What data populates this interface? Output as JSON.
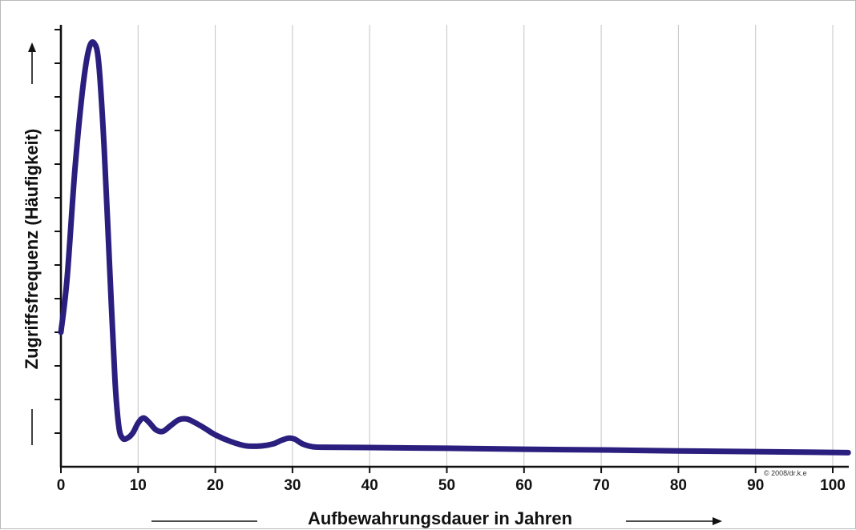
{
  "chart_data": {
    "type": "line",
    "title": "",
    "xlabel": "Aufbewahrungsdauer in Jahren",
    "ylabel": "Zugriffsfrequenz (Häufigkeit)",
    "xlim": [
      0,
      102
    ],
    "ylim": [
      0,
      13
    ],
    "x_ticks": [
      0,
      10,
      20,
      30,
      40,
      50,
      60,
      70,
      80,
      90,
      100
    ],
    "x_tick_labels": [
      "0",
      "10",
      "20",
      "30",
      "40",
      "50",
      "60",
      "70",
      "80",
      "90",
      "100"
    ],
    "y_tick_count": 13,
    "grid": "vertical",
    "legend": "none",
    "credit": "© 2008/dr.k.e",
    "series": [
      {
        "color": "#2a1f7e",
        "x": [
          0,
          0.8,
          1.8,
          2.8,
          3.6,
          4.3,
          4.9,
          5.6,
          6.3,
          7.0,
          7.5,
          8.0,
          8.6,
          9.3,
          10.0,
          10.7,
          11.5,
          12.3,
          13.2,
          14.2,
          15.3,
          16.3,
          17.3,
          18.6,
          20.0,
          22.0,
          24.0,
          26.0,
          27.5,
          28.5,
          29.5,
          30.3,
          31.3,
          32.5,
          34.0,
          40,
          50,
          60,
          70,
          80,
          90,
          102
        ],
        "y": [
          4.0,
          5.6,
          8.8,
          11.2,
          12.4,
          12.6,
          12.0,
          9.5,
          6.0,
          2.6,
          1.2,
          0.85,
          0.85,
          1.0,
          1.3,
          1.45,
          1.3,
          1.1,
          1.05,
          1.22,
          1.4,
          1.42,
          1.32,
          1.15,
          0.95,
          0.75,
          0.62,
          0.62,
          0.68,
          0.78,
          0.85,
          0.82,
          0.68,
          0.6,
          0.58,
          0.57,
          0.55,
          0.52,
          0.5,
          0.47,
          0.45,
          0.42
        ]
      }
    ]
  }
}
